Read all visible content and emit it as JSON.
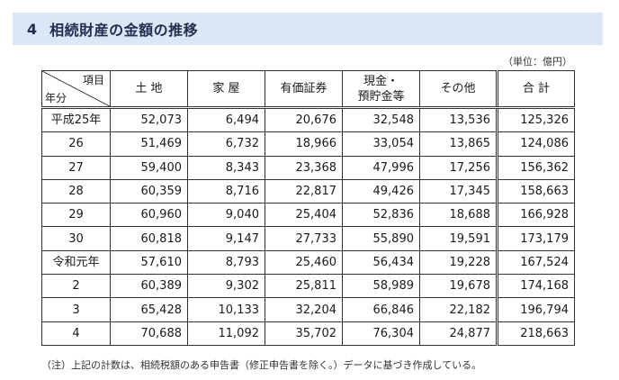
{
  "heading": {
    "number": "4",
    "title": "相続財産の金額の推移"
  },
  "unit_label": "（単位：億円）",
  "table": {
    "corner_item": "項目",
    "corner_year": "年分",
    "headers": {
      "land": "土 地",
      "house": "家 屋",
      "securities": "有価証券",
      "cash_line1": "現金・",
      "cash_line2": "預貯金等",
      "other": "その他",
      "total": "合 計"
    },
    "rows": [
      {
        "year": "平成25年",
        "land": "52,073",
        "house": "6,494",
        "securities": "20,676",
        "cash": "32,548",
        "other": "13,536",
        "total": "125,326"
      },
      {
        "year": "26",
        "land": "51,469",
        "house": "6,732",
        "securities": "18,966",
        "cash": "33,054",
        "other": "13,865",
        "total": "124,086"
      },
      {
        "year": "27",
        "land": "59,400",
        "house": "8,343",
        "securities": "23,368",
        "cash": "47,996",
        "other": "17,256",
        "total": "156,362"
      },
      {
        "year": "28",
        "land": "60,359",
        "house": "8,716",
        "securities": "22,817",
        "cash": "49,426",
        "other": "17,345",
        "total": "158,663"
      },
      {
        "year": "29",
        "land": "60,960",
        "house": "9,040",
        "securities": "25,404",
        "cash": "52,836",
        "other": "18,688",
        "total": "166,928"
      },
      {
        "year": "30",
        "land": "60,818",
        "house": "9,147",
        "securities": "27,733",
        "cash": "55,890",
        "other": "19,591",
        "total": "173,179"
      },
      {
        "year": "令和元年",
        "land": "57,610",
        "house": "8,793",
        "securities": "25,460",
        "cash": "56,434",
        "other": "19,228",
        "total": "167,524"
      },
      {
        "year": "2",
        "land": "60,389",
        "house": "9,302",
        "securities": "25,811",
        "cash": "58,989",
        "other": "19,678",
        "total": "174,168"
      },
      {
        "year": "3",
        "land": "65,428",
        "house": "10,133",
        "securities": "32,204",
        "cash": "66,846",
        "other": "22,182",
        "total": "196,794"
      },
      {
        "year": "4",
        "land": "70,688",
        "house": "11,092",
        "securities": "35,702",
        "cash": "76,304",
        "other": "24,877",
        "total": "218,663"
      }
    ]
  },
  "note": "（注）上記の計数は、相続税額のある申告書（修正申告書を除く。）データに基づき作成している。"
}
